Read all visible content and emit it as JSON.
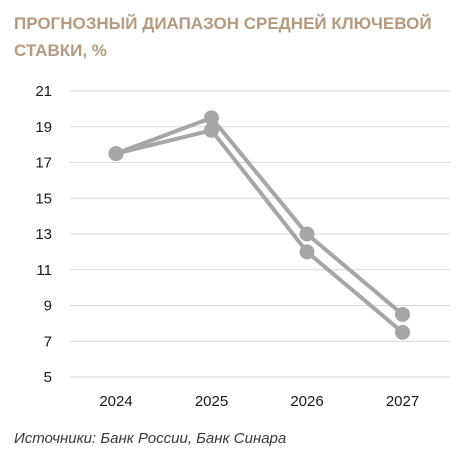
{
  "title_lines": [
    "ПРОГНОЗНЫЙ ДИАПАЗОН СРЕДНЕЙ КЛЮЧЕВОЙ",
    "СТАВКИ, %"
  ],
  "source": "Источники: Банк России, Банк Синара",
  "colors": {
    "title": "#b39a80",
    "series": "#a6a6a6",
    "grid": "#d9d9d9"
  },
  "chart_data": {
    "type": "line",
    "title": "ПРОГНОЗНЫЙ ДИАПАЗОН СРЕДНЕЙ КЛЮЧЕВОЙ СТАВКИ, %",
    "categories": [
      "2024",
      "2025",
      "2026",
      "2027"
    ],
    "series": [
      {
        "values": [
          17.5,
          19.5,
          13.0,
          8.5
        ]
      },
      {
        "values": [
          17.5,
          18.8,
          12.0,
          7.5
        ]
      }
    ],
    "yticks": [
      5,
      7,
      9,
      11,
      13,
      15,
      17,
      19,
      21
    ],
    "ylim": [
      5,
      21
    ],
    "grid": "horizontal",
    "legend": "none"
  }
}
